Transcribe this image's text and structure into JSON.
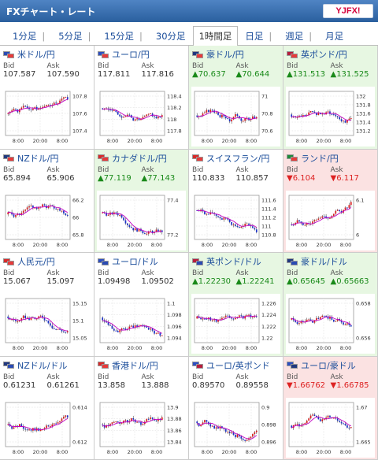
{
  "app": {
    "title": "FXチャート・レート",
    "logo_text": "YJFX!"
  },
  "tabs": [
    "1分足",
    "5分足",
    "15分足",
    "30分足",
    "1時間足",
    "日足",
    "週足",
    "月足"
  ],
  "active_tab": "1時間足",
  "labels": {
    "bid": "Bid",
    "ask": "Ask"
  },
  "colors": {
    "up_bg": "#e7f7e2",
    "down_bg": "#fbe2e2",
    "candle_up": "#d81d1d",
    "candle_down": "#1c32c8",
    "ma": "#c200c2"
  },
  "pairs": [
    {
      "name": "米ドル/円",
      "bid": "107.587",
      "ask": "107.590",
      "dir": "none",
      "flags": [
        "#2a4bb3",
        "#e63b3b"
      ],
      "yticks": [
        "107.8",
        "107.6",
        "107.4"
      ],
      "xticks": [
        "8:00",
        "20:00",
        "8:00"
      ],
      "trend": 0.0,
      "seed": 1
    },
    {
      "name": "ユーロ/円",
      "bid": "117.811",
      "ask": "117.816",
      "dir": "none",
      "flags": [
        "#2d4fc1",
        "#e63b3b"
      ],
      "yticks": [
        "118.4",
        "118.2",
        "118",
        "117.8"
      ],
      "xticks": [
        "8:00",
        "20:00",
        "8:00"
      ],
      "trend": -0.5,
      "seed": 2
    },
    {
      "name": "豪ドル/円",
      "bid": "▲70.637",
      "ask": "▲70.644",
      "dir": "up",
      "flags": [
        "#21387e",
        "#e63b3b"
      ],
      "yticks": [
        "71",
        "70.8",
        "70.6"
      ],
      "xticks": [
        "8:00",
        "20:00",
        "8:00"
      ],
      "trend": 0.2,
      "seed": 3
    },
    {
      "name": "英ポンド/円",
      "bid": "▲131.513",
      "ask": "▲131.525",
      "dir": "up",
      "flags": [
        "#b61d3d",
        "#e63b3b"
      ],
      "yticks": [
        "132",
        "131.8",
        "131.6",
        "131.4",
        "131.2"
      ],
      "xticks": [
        "8:00",
        "20:00",
        "8:00"
      ],
      "trend": 0.1,
      "seed": 4
    },
    {
      "name": "NZドル/円",
      "bid": "65.894",
      "ask": "65.906",
      "dir": "none",
      "flags": [
        "#21387e",
        "#e63b3b"
      ],
      "yticks": [
        "66.2",
        "66",
        "65.8"
      ],
      "xticks": [
        "8:00",
        "20:00",
        "8:00"
      ],
      "trend": -0.3,
      "seed": 5
    },
    {
      "name": "カナダドル/円",
      "bid": "▲77.119",
      "ask": "▲77.143",
      "dir": "up",
      "flags": [
        "#d82a2a",
        "#e63b3b"
      ],
      "yticks": [
        "77.4",
        "77.2"
      ],
      "xticks": [
        "8:00",
        "20:00",
        "8:00"
      ],
      "trend": -0.4,
      "seed": 6
    },
    {
      "name": "スイスフラン/円",
      "bid": "110.833",
      "ask": "110.857",
      "dir": "none",
      "flags": [
        "#d82a2a",
        "#e63b3b"
      ],
      "yticks": [
        "111.6",
        "111.4",
        "111.2",
        "111",
        "110.8"
      ],
      "xticks": [
        "8:00",
        "20:00",
        "8:00"
      ],
      "trend": -0.7,
      "seed": 7
    },
    {
      "name": "ランド/円",
      "bid": "▼6.104",
      "ask": "▼6.117",
      "dir": "down",
      "flags": [
        "#1f8a3b",
        "#e63b3b"
      ],
      "yticks": [
        "6.1",
        "6"
      ],
      "xticks": [
        "8:00",
        "20:00",
        "8:00"
      ],
      "trend": 0.7,
      "seed": 8
    },
    {
      "name": "人民元/円",
      "bid": "15.067",
      "ask": "15.097",
      "dir": "none",
      "flags": [
        "#d82a2a",
        "#e63b3b"
      ],
      "yticks": [
        "15.15",
        "15.1",
        "15.05"
      ],
      "xticks": [
        "8:00",
        "20:00",
        "8:00"
      ],
      "trend": -0.4,
      "seed": 9
    },
    {
      "name": "ユーロ/ドル",
      "bid": "1.09498",
      "ask": "1.09502",
      "dir": "none",
      "flags": [
        "#2d4fc1",
        "#2a4bb3"
      ],
      "yticks": [
        "1.1",
        "1.098",
        "1.096",
        "1.094"
      ],
      "xticks": [
        "8:00",
        "20:00",
        "8:00"
      ],
      "trend": -0.3,
      "seed": 10
    },
    {
      "name": "英ポンド/ドル",
      "bid": "▲1.22230",
      "ask": "▲1.22241",
      "dir": "up",
      "flags": [
        "#b61d3d",
        "#2a4bb3"
      ],
      "yticks": [
        "1.226",
        "1.224",
        "1.222",
        "1.22"
      ],
      "xticks": [
        "8:00",
        "20:00",
        "8:00"
      ],
      "trend": -0.2,
      "seed": 11
    },
    {
      "name": "豪ドル/ドル",
      "bid": "▲0.65645",
      "ask": "▲0.65663",
      "dir": "up",
      "flags": [
        "#21387e",
        "#2a4bb3"
      ],
      "yticks": [
        "0.658",
        "0.656"
      ],
      "xticks": [
        "8:00",
        "20:00",
        "8:00"
      ],
      "trend": -0.1,
      "seed": 12
    },
    {
      "name": "NZドル/ドル",
      "bid": "0.61231",
      "ask": "0.61261",
      "dir": "none",
      "flags": [
        "#21387e",
        "#2a4bb3"
      ],
      "yticks": [
        "0.614",
        "0.612"
      ],
      "xticks": [
        "8:00",
        "20:00",
        "8:00"
      ],
      "trend": 0.0,
      "seed": 13
    },
    {
      "name": "香港ドル/円",
      "bid": "13.858",
      "ask": "13.888",
      "dir": "none",
      "flags": [
        "#d82a2a",
        "#e63b3b"
      ],
      "yticks": [
        "13.9",
        "13.88",
        "13.86",
        "13.84"
      ],
      "xticks": [
        "8:00",
        "20:00",
        "8:00"
      ],
      "trend": 0.0,
      "seed": 14
    },
    {
      "name": "ユーロ/英ポンド",
      "bid": "0.89570",
      "ask": "0.89558",
      "dir": "none",
      "flags": [
        "#2d4fc1",
        "#b61d3d"
      ],
      "yticks": [
        "0.9",
        "0.898",
        "0.896"
      ],
      "xticks": [
        "8:00",
        "20:00",
        "8:00"
      ],
      "trend": -0.3,
      "seed": 15
    },
    {
      "name": "ユーロ/豪ドル",
      "bid": "▼1.66762",
      "ask": "▼1.66785",
      "dir": "down",
      "flags": [
        "#2d4fc1",
        "#21387e"
      ],
      "yticks": [
        "1.67",
        "1.665"
      ],
      "xticks": [
        "8:00",
        "20:00",
        "8:00"
      ],
      "trend": 0.1,
      "seed": 16
    }
  ]
}
